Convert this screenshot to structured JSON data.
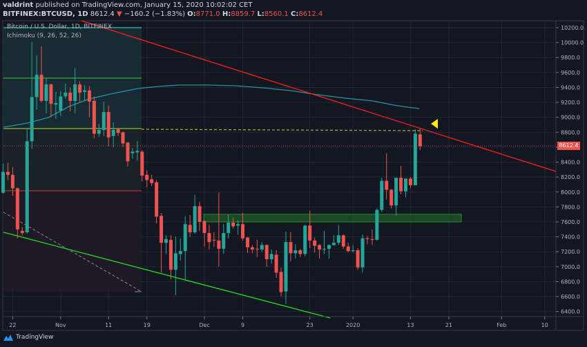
{
  "header": {
    "author": "valdrint",
    "published_text": "published on TradingView.com, January 15, 2020 10:02:02 CET",
    "symbol": "BITFINEX:BTCUSD, 1D",
    "last": "8612.4",
    "change": "−160.2 (−1.83%)",
    "o_label": "O:",
    "o_value": "8771.0",
    "h_label": "H:",
    "h_value": "8859.7",
    "l_label": "L:",
    "l_value": "8560.1",
    "c_label": "C:",
    "c_value": "8612.4"
  },
  "legend": {
    "series_title": "Bitcoin / U.S. Dollar, 1D, BITFINEX",
    "indicator": "Ichimoku (9, 26, 52, 26)"
  },
  "price_tag": "8612.4",
  "footer": {
    "brand": "TradingView"
  },
  "colors": {
    "up": "#26a69a",
    "down": "#ef5350",
    "background": "#131722",
    "trendline": "#ff1e1e",
    "support_line": "#22dd22",
    "moving_average": "#2196a6",
    "zone": "#1f5a25",
    "marker": "#ffee00"
  },
  "icons": {
    "change": "triangle-down-icon",
    "marker": "triangle-left-icon",
    "logo": "tradingview-logo-icon"
  },
  "chart_data": {
    "type": "candlestick",
    "title": "Bitcoin / U.S. Dollar, 1D, BITFINEX",
    "ylim": [
      6300,
      10300
    ],
    "grid": true,
    "y_ticks": [
      "6400.0",
      "6600.0",
      "6800.0",
      "7000.0",
      "7200.0",
      "7400.0",
      "7600.0",
      "7800.0",
      "8000.0",
      "8200.0",
      "8400.0",
      "8600.0",
      "8800.0",
      "9000.0",
      "9200.0",
      "9400.0",
      "9600.0",
      "9800.0",
      "10000.0",
      "10200.0"
    ],
    "x_ticks": [
      {
        "label": "22",
        "date": "2019-10-22"
      },
      {
        "label": "Nov",
        "date": "2019-11-01"
      },
      {
        "label": "11",
        "date": "2019-11-11"
      },
      {
        "label": "19",
        "date": "2019-11-19"
      },
      {
        "label": "Dec",
        "date": "2019-12-01"
      },
      {
        "label": "9",
        "date": "2019-12-09"
      },
      {
        "label": "23",
        "date": "2019-12-23"
      },
      {
        "label": "2020",
        "date": "2020-01-01"
      },
      {
        "label": "13",
        "date": "2020-01-13"
      },
      {
        "label": "21",
        "date": "2020-01-21"
      },
      {
        "label": "Feb",
        "date": "2020-02-01"
      },
      {
        "label": "10",
        "date": "2020-02-10"
      }
    ],
    "columns": [
      "date",
      "open",
      "high",
      "low",
      "close"
    ],
    "candles": [
      [
        "2019-10-20",
        7990,
        8380,
        7980,
        8270
      ],
      [
        "2019-10-21",
        8270,
        8390,
        8160,
        8230
      ],
      [
        "2019-10-22",
        8230,
        8330,
        7950,
        8050
      ],
      [
        "2019-10-23",
        8050,
        8060,
        7380,
        7500
      ],
      [
        "2019-10-24",
        7480,
        7530,
        7420,
        7450
      ],
      [
        "2019-10-25",
        7460,
        8850,
        7440,
        8680
      ],
      [
        "2019-10-26",
        8680,
        10010,
        8580,
        9270
      ],
      [
        "2019-10-27",
        9270,
        9830,
        9100,
        9570
      ],
      [
        "2019-10-28",
        9570,
        9950,
        9200,
        9220
      ],
      [
        "2019-10-29",
        9220,
        9520,
        9050,
        9440
      ],
      [
        "2019-10-30",
        9440,
        9450,
        9000,
        9180
      ],
      [
        "2019-10-31",
        9170,
        9340,
        8980,
        9190
      ],
      [
        "2019-11-01",
        9090,
        9350,
        9020,
        9280
      ],
      [
        "2019-11-02",
        9280,
        9450,
        9250,
        9330
      ],
      [
        "2019-11-03",
        9330,
        9400,
        9080,
        9220
      ],
      [
        "2019-11-04",
        9220,
        9660,
        9050,
        9440
      ],
      [
        "2019-11-05",
        9440,
        9480,
        9200,
        9330
      ],
      [
        "2019-11-06",
        9340,
        9430,
        9220,
        9360
      ],
      [
        "2019-11-07",
        9360,
        9420,
        9000,
        9210
      ],
      [
        "2019-11-08",
        9220,
        9280,
        8720,
        8780
      ],
      [
        "2019-11-09",
        8780,
        8910,
        8740,
        8830
      ],
      [
        "2019-11-10",
        8830,
        9210,
        8750,
        9070
      ],
      [
        "2019-11-11",
        9070,
        9160,
        8610,
        8730
      ],
      [
        "2019-11-12",
        8750,
        8930,
        8600,
        8830
      ],
      [
        "2019-11-13",
        8840,
        8860,
        8750,
        8790
      ],
      [
        "2019-11-14",
        8800,
        8810,
        8600,
        8650
      ],
      [
        "2019-11-15",
        8660,
        8670,
        8340,
        8410
      ],
      [
        "2019-11-16",
        8520,
        8590,
        8450,
        8540
      ],
      [
        "2019-11-17",
        8530,
        8680,
        8420,
        8550
      ],
      [
        "2019-11-18",
        8540,
        8560,
        8140,
        8220
      ],
      [
        "2019-11-19",
        8230,
        8290,
        8060,
        8160
      ],
      [
        "2019-11-20",
        8170,
        8230,
        8080,
        8120
      ],
      [
        "2019-11-21",
        8130,
        8160,
        7580,
        7670
      ],
      [
        "2019-11-22",
        7680,
        7720,
        6920,
        7320
      ],
      [
        "2019-11-23",
        7320,
        7420,
        7170,
        7370
      ],
      [
        "2019-11-24",
        7360,
        7420,
        6830,
        6960
      ],
      [
        "2019-11-25",
        6960,
        7400,
        6620,
        7180
      ],
      [
        "2019-11-26",
        7170,
        7380,
        7080,
        7210
      ],
      [
        "2019-11-27",
        7210,
        7680,
        6830,
        7570
      ],
      [
        "2019-11-28",
        7560,
        7690,
        7400,
        7460
      ],
      [
        "2019-11-29",
        7460,
        7960,
        7440,
        7810
      ],
      [
        "2019-11-30",
        7810,
        7870,
        7480,
        7600
      ],
      [
        "2019-12-01",
        7610,
        7620,
        7270,
        7450
      ],
      [
        "2019-12-02",
        7450,
        7560,
        7230,
        7330
      ],
      [
        "2019-12-03",
        7360,
        7460,
        7270,
        7350
      ],
      [
        "2019-12-04",
        7350,
        7990,
        7000,
        7240
      ],
      [
        "2019-12-05",
        7240,
        7570,
        7170,
        7450
      ],
      [
        "2019-12-06",
        7450,
        7700,
        7380,
        7590
      ],
      [
        "2019-12-07",
        7590,
        7660,
        7510,
        7540
      ],
      [
        "2019-12-08",
        7550,
        7620,
        7430,
        7570
      ],
      [
        "2019-12-09",
        7570,
        7720,
        7350,
        7380
      ],
      [
        "2019-12-10",
        7390,
        7400,
        7180,
        7260
      ],
      [
        "2019-12-11",
        7260,
        7290,
        7180,
        7230
      ],
      [
        "2019-12-12",
        7240,
        7360,
        7130,
        7230
      ],
      [
        "2019-12-13",
        7230,
        7330,
        7200,
        7290
      ],
      [
        "2019-12-14",
        7290,
        7300,
        7000,
        7100
      ],
      [
        "2019-12-15",
        7100,
        7230,
        7040,
        7170
      ],
      [
        "2019-12-16",
        7160,
        7220,
        6850,
        6920
      ],
      [
        "2019-12-17",
        6930,
        6990,
        6600,
        6660
      ],
      [
        "2019-12-18",
        6670,
        7470,
        6500,
        7330
      ],
      [
        "2019-12-19",
        7330,
        7460,
        7070,
        7180
      ],
      [
        "2019-12-20",
        7180,
        7300,
        7110,
        7220
      ],
      [
        "2019-12-21",
        7220,
        7240,
        7130,
        7170
      ],
      [
        "2019-12-22",
        7170,
        7560,
        7140,
        7550
      ],
      [
        "2019-12-23",
        7550,
        7750,
        7250,
        7350
      ],
      [
        "2019-12-24",
        7350,
        7390,
        7190,
        7280
      ],
      [
        "2019-12-25",
        7290,
        7300,
        7110,
        7230
      ],
      [
        "2019-12-26",
        7230,
        7480,
        7170,
        7240
      ],
      [
        "2019-12-27",
        7240,
        7300,
        7110,
        7290
      ],
      [
        "2019-12-28",
        7290,
        7420,
        7280,
        7320
      ],
      [
        "2019-12-29",
        7320,
        7560,
        7290,
        7420
      ],
      [
        "2019-12-30",
        7420,
        7430,
        7240,
        7270
      ],
      [
        "2019-12-31",
        7270,
        7320,
        7190,
        7210
      ],
      [
        "2020-01-01",
        7210,
        7290,
        7190,
        7220
      ],
      [
        "2020-01-02",
        7220,
        7250,
        6960,
        6990
      ],
      [
        "2020-01-03",
        6990,
        7430,
        6920,
        7380
      ],
      [
        "2020-01-04",
        7380,
        7410,
        7300,
        7370
      ],
      [
        "2020-01-05",
        7370,
        7500,
        7290,
        7360
      ],
      [
        "2020-01-06",
        7360,
        7780,
        7350,
        7760
      ],
      [
        "2020-01-07",
        7760,
        8190,
        7730,
        8150
      ],
      [
        "2020-01-08",
        8150,
        8520,
        7900,
        8030
      ],
      [
        "2020-01-09",
        8030,
        8040,
        7780,
        7820
      ],
      [
        "2020-01-10",
        7820,
        8190,
        7680,
        8190
      ],
      [
        "2020-01-11",
        8190,
        8350,
        7970,
        8010
      ],
      [
        "2020-01-12",
        8010,
        8180,
        7930,
        8180
      ],
      [
        "2020-01-13",
        8180,
        8200,
        8050,
        8090
      ],
      [
        "2020-01-14",
        8090,
        8840,
        8090,
        8780
      ],
      [
        "2020-01-15",
        8771.0,
        8859.7,
        8560.1,
        8612.4
      ]
    ]
  }
}
